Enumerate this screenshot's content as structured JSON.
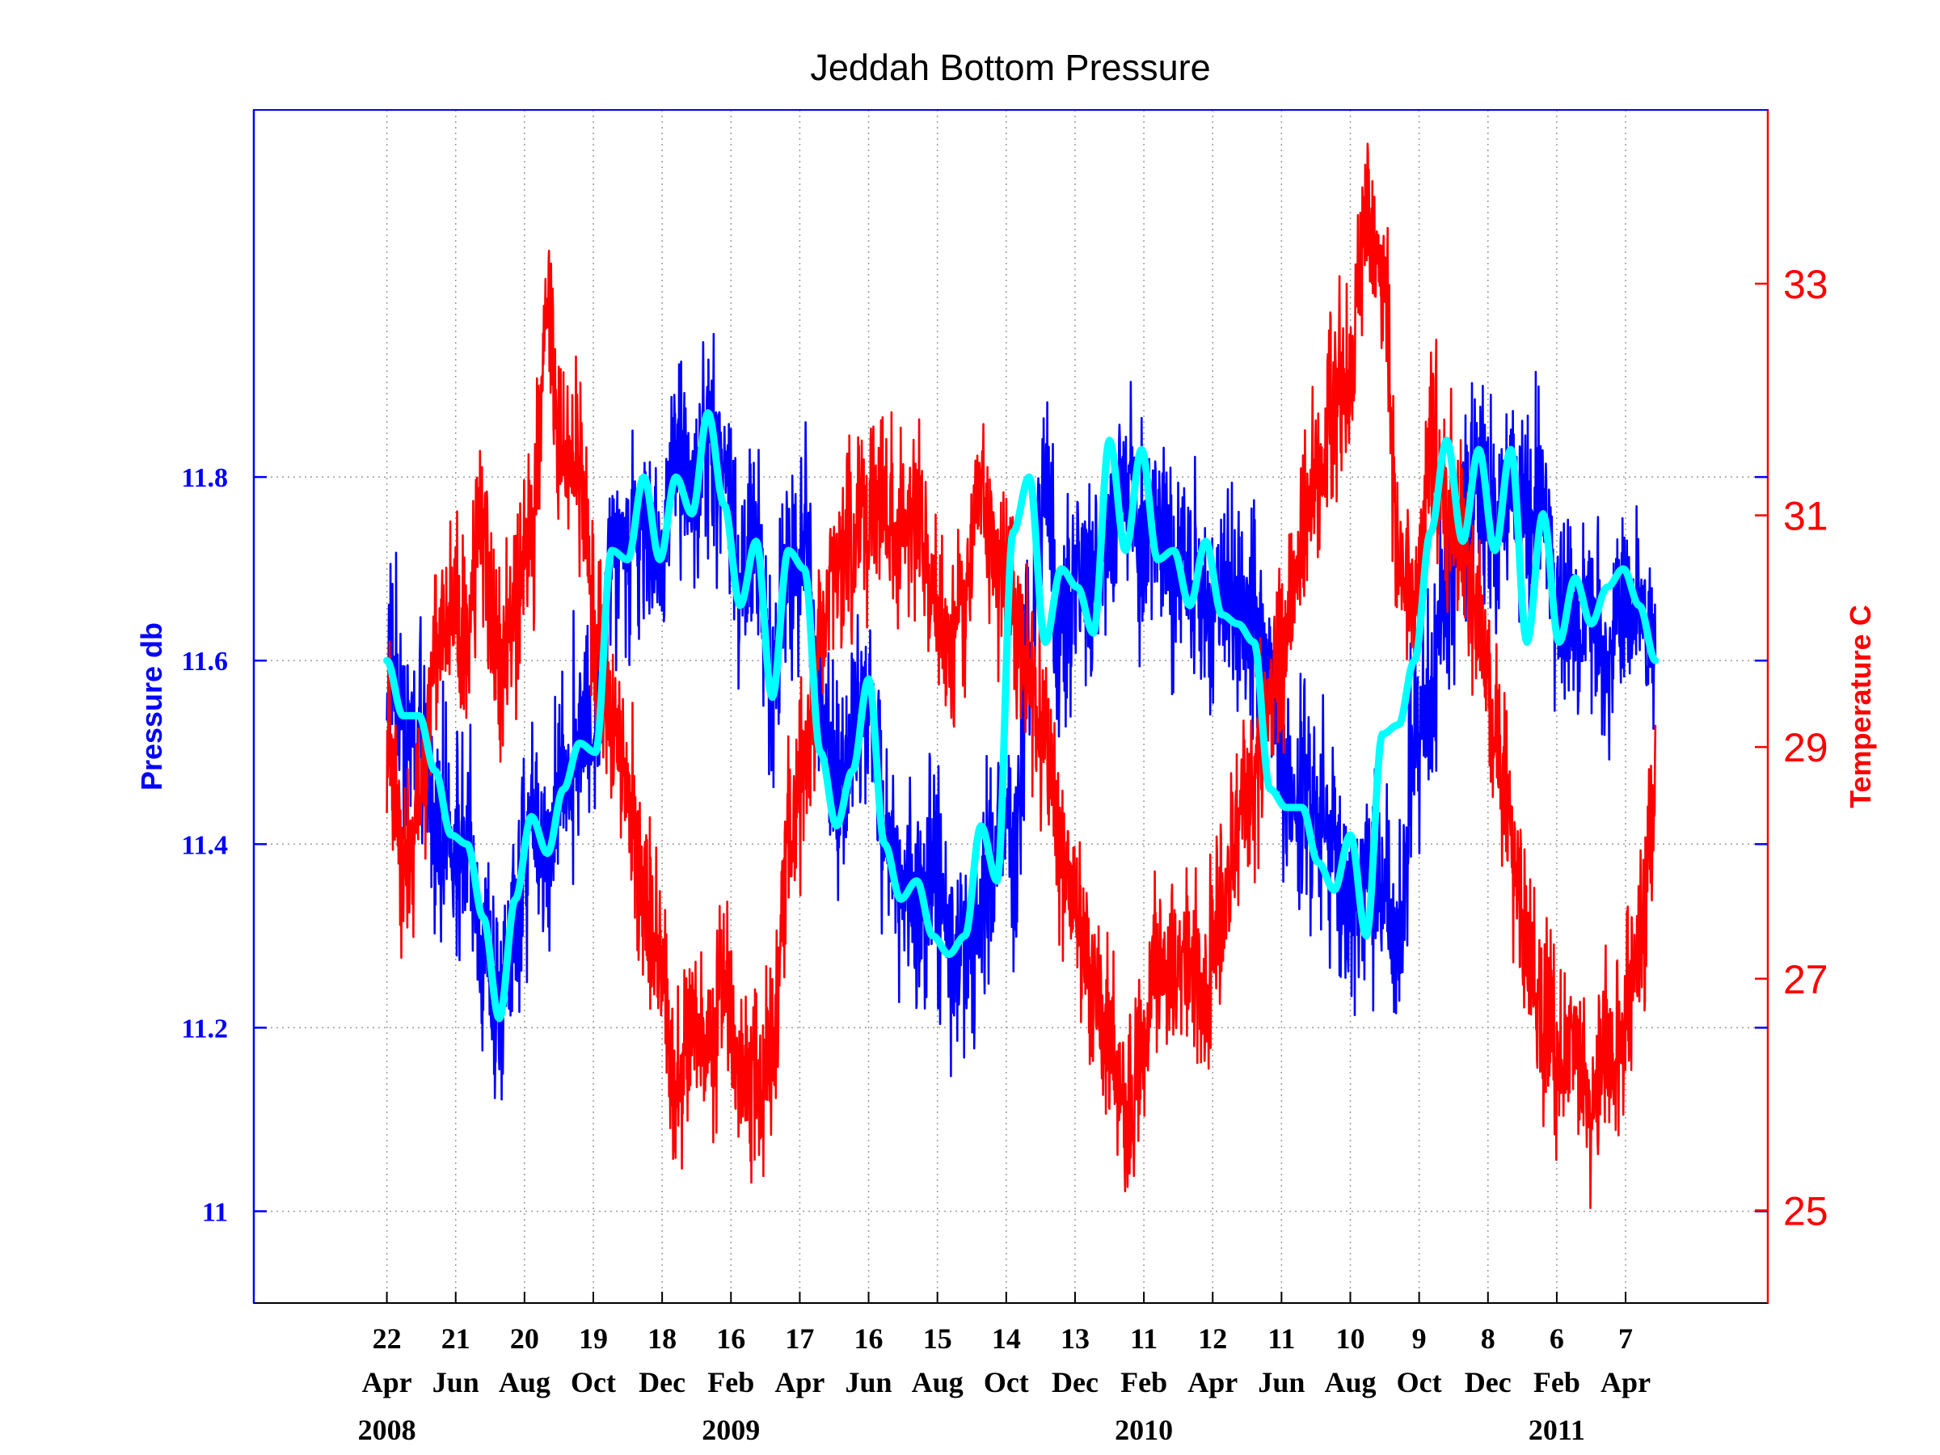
{
  "chart_data": {
    "type": "line",
    "title": "Jeddah Bottom Pressure",
    "y_left": {
      "label": "Pressure db",
      "ticks": [
        "11",
        "11.2",
        "11.4",
        "11.6",
        "11.8"
      ],
      "tick_values": [
        11.0,
        11.2,
        11.4,
        11.6,
        11.8
      ],
      "range": [
        10.9,
        12.2
      ],
      "color": "#0000ff"
    },
    "y_right": {
      "label": "Temperature C",
      "ticks": [
        "25",
        "27",
        "29",
        "31",
        "33"
      ],
      "tick_values": [
        25,
        27,
        29,
        31,
        33
      ],
      "range": [
        24.2,
        34.5
      ],
      "color": "#ff0000"
    },
    "x_axis": {
      "range": [
        "2007-12-28",
        "2011-08-09"
      ],
      "ticks": [
        {
          "date": "2008-04-22",
          "day": "22",
          "month": "Apr"
        },
        {
          "date": "2008-06-21",
          "day": "21",
          "month": "Jun"
        },
        {
          "date": "2008-08-20",
          "day": "20",
          "month": "Aug"
        },
        {
          "date": "2008-10-19",
          "day": "19",
          "month": "Oct"
        },
        {
          "date": "2008-12-18",
          "day": "18",
          "month": "Dec"
        },
        {
          "date": "2009-02-16",
          "day": "16",
          "month": "Feb"
        },
        {
          "date": "2009-04-17",
          "day": "17",
          "month": "Apr"
        },
        {
          "date": "2009-06-16",
          "day": "16",
          "month": "Jun"
        },
        {
          "date": "2009-08-15",
          "day": "15",
          "month": "Aug"
        },
        {
          "date": "2009-10-14",
          "day": "14",
          "month": "Oct"
        },
        {
          "date": "2009-12-13",
          "day": "13",
          "month": "Dec"
        },
        {
          "date": "2010-02-11",
          "day": "11",
          "month": "Feb"
        },
        {
          "date": "2010-04-12",
          "day": "12",
          "month": "Apr"
        },
        {
          "date": "2010-06-11",
          "day": "11",
          "month": "Jun"
        },
        {
          "date": "2010-08-10",
          "day": "10",
          "month": "Aug"
        },
        {
          "date": "2010-10-09",
          "day": "9",
          "month": "Oct"
        },
        {
          "date": "2010-12-08",
          "day": "8",
          "month": "Dec"
        },
        {
          "date": "2011-02-06",
          "day": "6",
          "month": "Feb"
        },
        {
          "date": "2011-04-07",
          "day": "7",
          "month": "Apr"
        }
      ],
      "years": [
        {
          "label": "2008",
          "date": "2008-04-22"
        },
        {
          "label": "2009",
          "date": "2009-02-16"
        },
        {
          "label": "2010",
          "date": "2010-02-11"
        },
        {
          "label": "2011",
          "date": "2011-02-06"
        }
      ]
    },
    "grid": true,
    "series": [
      {
        "axis": "left",
        "color": "#0000ff",
        "style": "noisy",
        "dates": [
          "2008-04-22",
          "2008-05-06",
          "2008-05-20",
          "2008-06-03",
          "2008-06-17",
          "2008-07-01",
          "2008-07-15",
          "2008-07-29",
          "2008-08-12",
          "2008-08-26",
          "2008-09-09",
          "2008-09-23",
          "2008-10-07",
          "2008-10-21",
          "2008-11-04",
          "2008-11-18",
          "2008-12-02",
          "2008-12-16",
          "2008-12-30",
          "2009-01-13",
          "2009-01-27",
          "2009-02-10",
          "2009-02-24",
          "2009-03-10",
          "2009-03-24",
          "2009-04-07",
          "2009-04-21",
          "2009-05-05",
          "2009-05-19",
          "2009-06-02",
          "2009-06-16",
          "2009-06-30",
          "2009-07-14",
          "2009-07-28",
          "2009-08-11",
          "2009-08-25",
          "2009-09-08",
          "2009-09-22",
          "2009-10-06",
          "2009-10-20",
          "2009-11-03",
          "2009-11-17",
          "2009-12-01",
          "2009-12-15",
          "2009-12-29",
          "2010-01-12",
          "2010-01-26",
          "2010-02-09",
          "2010-02-23",
          "2010-03-09",
          "2010-03-23",
          "2010-04-06",
          "2010-04-20",
          "2010-05-04",
          "2010-05-18",
          "2010-06-01",
          "2010-06-15",
          "2010-06-29",
          "2010-07-13",
          "2010-07-27",
          "2010-08-10",
          "2010-08-24",
          "2010-09-07",
          "2010-09-21",
          "2010-10-05",
          "2010-10-19",
          "2010-11-02",
          "2010-11-16",
          "2010-11-30",
          "2010-12-14",
          "2010-12-28",
          "2011-01-11",
          "2011-01-25",
          "2011-02-08",
          "2011-02-22",
          "2011-03-08",
          "2011-03-22",
          "2011-04-05",
          "2011-04-19",
          "2011-05-03"
        ],
        "values": [
          11.6,
          11.54,
          11.51,
          11.45,
          11.4,
          11.38,
          11.28,
          11.22,
          11.32,
          11.42,
          11.39,
          11.47,
          11.52,
          11.53,
          11.74,
          11.72,
          11.76,
          11.7,
          11.83,
          11.78,
          11.84,
          11.82,
          11.68,
          11.73,
          11.58,
          11.7,
          11.73,
          11.55,
          11.44,
          11.52,
          11.57,
          11.42,
          11.36,
          11.33,
          11.38,
          11.3,
          11.28,
          11.32,
          11.42,
          11.38,
          11.62,
          11.79,
          11.62,
          11.7,
          11.68,
          11.74,
          11.8,
          11.73,
          11.78,
          11.68,
          11.7,
          11.66,
          11.69,
          11.66,
          11.65,
          11.58,
          11.46,
          11.45,
          11.44,
          11.4,
          11.33,
          11.38,
          11.34,
          11.3,
          11.5,
          11.54,
          11.7,
          11.76,
          11.8,
          11.74,
          11.78,
          11.73,
          11.78,
          11.66,
          11.63,
          11.68,
          11.58,
          11.65,
          11.68,
          11.6
        ]
      },
      {
        "axis": "left",
        "color": "#00ffff",
        "style": "smooth",
        "dates": [
          "2008-04-22",
          "2008-05-06",
          "2008-05-20",
          "2008-06-03",
          "2008-06-17",
          "2008-07-01",
          "2008-07-15",
          "2008-07-29",
          "2008-08-12",
          "2008-08-26",
          "2008-09-09",
          "2008-09-23",
          "2008-10-07",
          "2008-10-21",
          "2008-11-04",
          "2008-11-18",
          "2008-12-02",
          "2008-12-16",
          "2008-12-30",
          "2009-01-13",
          "2009-01-27",
          "2009-02-10",
          "2009-02-24",
          "2009-03-10",
          "2009-03-24",
          "2009-04-07",
          "2009-04-21",
          "2009-05-05",
          "2009-05-19",
          "2009-06-02",
          "2009-06-16",
          "2009-06-30",
          "2009-07-14",
          "2009-07-28",
          "2009-08-11",
          "2009-08-25",
          "2009-09-08",
          "2009-09-22",
          "2009-10-06",
          "2009-10-20",
          "2009-11-03",
          "2009-11-17",
          "2009-12-01",
          "2009-12-15",
          "2009-12-29",
          "2010-01-12",
          "2010-01-26",
          "2010-02-09",
          "2010-02-23",
          "2010-03-09",
          "2010-03-23",
          "2010-04-06",
          "2010-04-20",
          "2010-05-04",
          "2010-05-18",
          "2010-06-01",
          "2010-06-15",
          "2010-06-29",
          "2010-07-13",
          "2010-07-27",
          "2010-08-10",
          "2010-08-24",
          "2010-09-07",
          "2010-09-21",
          "2010-10-05",
          "2010-10-19",
          "2010-11-02",
          "2010-11-16",
          "2010-11-30",
          "2010-12-14",
          "2010-12-28",
          "2011-01-11",
          "2011-01-25",
          "2011-02-08",
          "2011-02-22",
          "2011-03-08",
          "2011-03-22",
          "2011-04-05",
          "2011-04-19",
          "2011-05-03"
        ],
        "values": [
          11.6,
          11.54,
          11.54,
          11.48,
          11.41,
          11.4,
          11.32,
          11.21,
          11.34,
          11.43,
          11.39,
          11.46,
          11.51,
          11.5,
          11.72,
          11.71,
          11.8,
          11.71,
          11.8,
          11.76,
          11.87,
          11.77,
          11.66,
          11.73,
          11.56,
          11.72,
          11.7,
          11.5,
          11.42,
          11.48,
          11.58,
          11.4,
          11.34,
          11.36,
          11.3,
          11.28,
          11.3,
          11.42,
          11.36,
          11.74,
          11.8,
          11.62,
          11.7,
          11.68,
          11.63,
          11.84,
          11.72,
          11.83,
          11.71,
          11.72,
          11.66,
          11.73,
          11.65,
          11.64,
          11.62,
          11.46,
          11.44,
          11.44,
          11.38,
          11.35,
          11.41,
          11.3,
          11.52,
          11.53,
          11.6,
          11.74,
          11.84,
          11.73,
          11.83,
          11.72,
          11.83,
          11.62,
          11.76,
          11.62,
          11.69,
          11.64,
          11.68,
          11.7,
          11.66,
          11.6
        ]
      },
      {
        "axis": "right",
        "color": "#ff0000",
        "style": "noisy",
        "dates": [
          "2008-04-22",
          "2008-05-06",
          "2008-05-20",
          "2008-06-03",
          "2008-06-17",
          "2008-07-01",
          "2008-07-15",
          "2008-07-29",
          "2008-08-12",
          "2008-08-26",
          "2008-09-09",
          "2008-09-23",
          "2008-10-07",
          "2008-10-21",
          "2008-11-04",
          "2008-11-18",
          "2008-12-02",
          "2008-12-16",
          "2008-12-30",
          "2009-01-13",
          "2009-01-27",
          "2009-02-10",
          "2009-02-24",
          "2009-03-10",
          "2009-03-24",
          "2009-04-07",
          "2009-04-21",
          "2009-05-05",
          "2009-05-19",
          "2009-06-02",
          "2009-06-16",
          "2009-06-30",
          "2009-07-14",
          "2009-07-28",
          "2009-08-11",
          "2009-08-25",
          "2009-09-08",
          "2009-09-22",
          "2009-10-06",
          "2009-10-20",
          "2009-11-03",
          "2009-11-17",
          "2009-12-01",
          "2009-12-15",
          "2009-12-29",
          "2010-01-12",
          "2010-01-26",
          "2010-02-09",
          "2010-02-23",
          "2010-03-09",
          "2010-03-23",
          "2010-04-06",
          "2010-04-20",
          "2010-05-04",
          "2010-05-18",
          "2010-06-01",
          "2010-06-15",
          "2010-06-29",
          "2010-07-13",
          "2010-07-27",
          "2010-08-10",
          "2010-08-24",
          "2010-09-07",
          "2010-09-21",
          "2010-10-05",
          "2010-10-19",
          "2010-11-02",
          "2010-11-16",
          "2010-11-30",
          "2010-12-14",
          "2010-12-28",
          "2011-01-11",
          "2011-01-25",
          "2011-02-08",
          "2011-02-22",
          "2011-03-08",
          "2011-03-22",
          "2011-04-05",
          "2011-04-19",
          "2011-05-03"
        ],
        "values": [
          29.0,
          28.0,
          28.3,
          29.8,
          30.1,
          30.0,
          31.0,
          29.6,
          30.2,
          30.9,
          32.8,
          31.5,
          31.3,
          30.0,
          29.2,
          28.6,
          27.6,
          27.2,
          26.0,
          26.6,
          26.4,
          27.0,
          26.1,
          26.2,
          26.4,
          28.2,
          28.8,
          30.0,
          30.6,
          30.8,
          30.9,
          31.1,
          30.7,
          31.1,
          30.2,
          29.8,
          30.4,
          31.2,
          30.6,
          30.3,
          29.6,
          29.0,
          28.1,
          27.6,
          26.8,
          26.4,
          25.8,
          26.3,
          27.2,
          27.0,
          27.1,
          26.9,
          27.5,
          28.2,
          28.8,
          29.5,
          30.0,
          30.9,
          31.4,
          32.0,
          32.2,
          33.6,
          33.2,
          30.6,
          30.3,
          31.6,
          31.1,
          30.8,
          30.0,
          29.0,
          28.2,
          27.3,
          26.6,
          26.2,
          26.4,
          25.9,
          26.3,
          26.5,
          27.3,
          28.6
        ]
      }
    ]
  }
}
